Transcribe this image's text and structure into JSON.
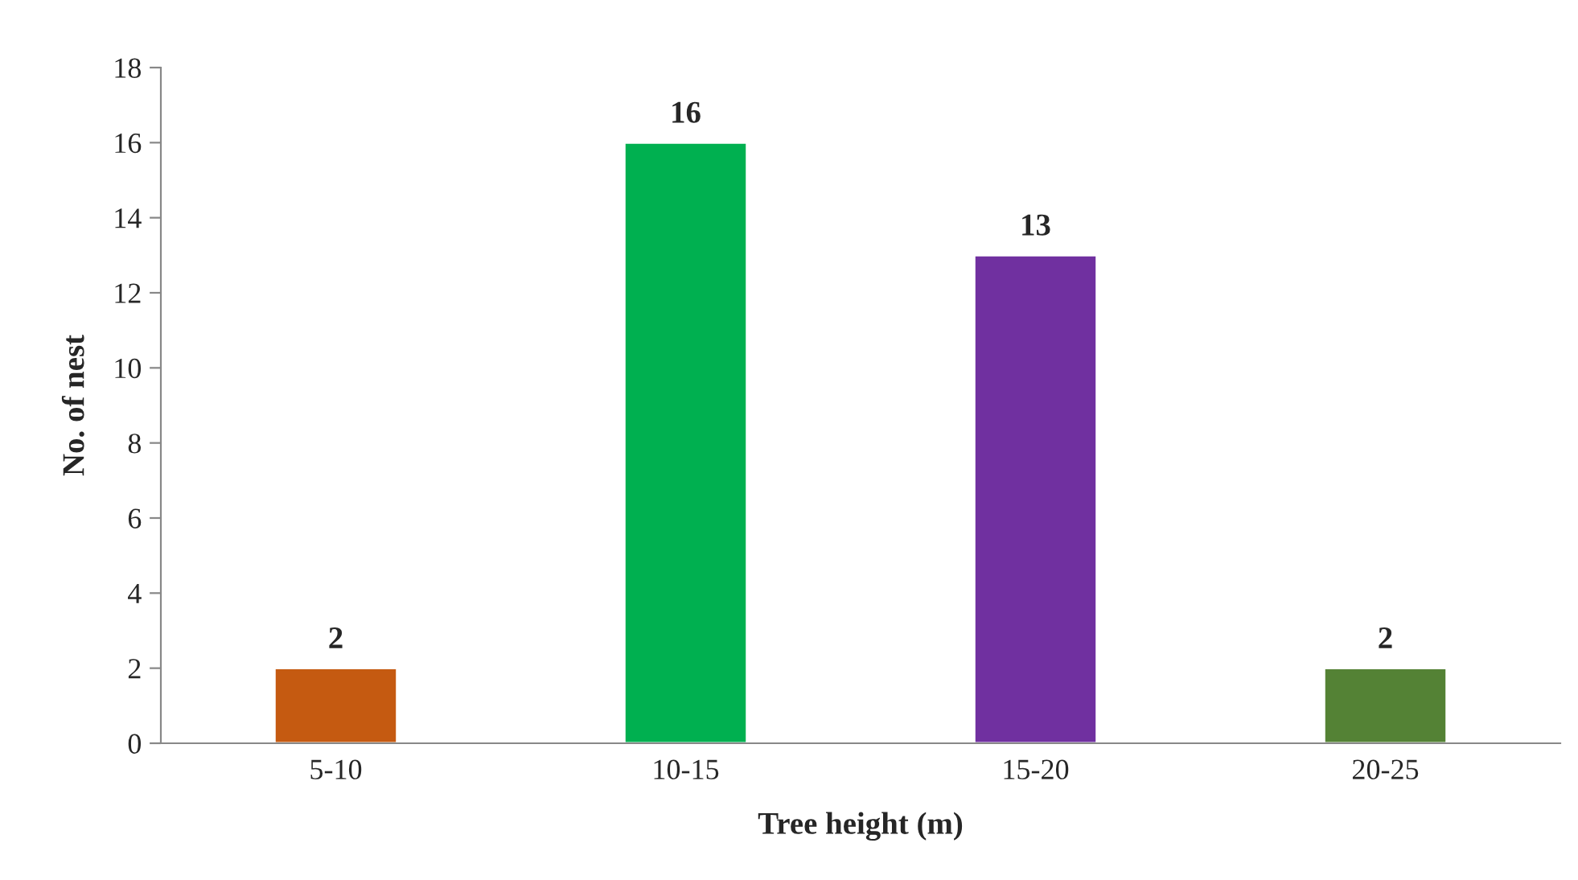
{
  "chart_data": {
    "type": "bar",
    "xlabel": "Tree height (m)",
    "ylabel": "No. of nest",
    "categories": [
      "5-10",
      "10-15",
      "15-20",
      "20-25"
    ],
    "values": [
      2,
      16,
      13,
      2
    ],
    "colors": [
      "#c55a11",
      "#00b050",
      "#7030a0",
      "#548235"
    ],
    "ylim": [
      0,
      18
    ],
    "yticks": [
      0,
      2,
      4,
      6,
      8,
      10,
      12,
      14,
      16,
      18
    ],
    "data_labels": true,
    "grid": false,
    "legend": false
  }
}
